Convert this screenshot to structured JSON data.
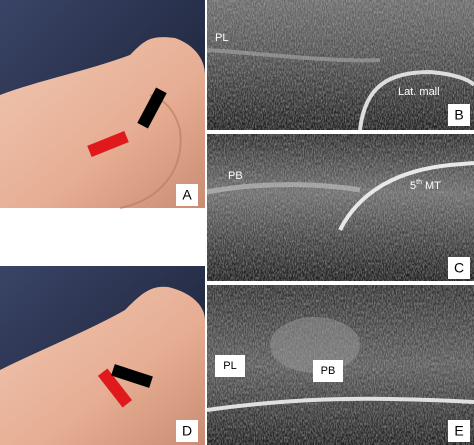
{
  "panels": [
    {
      "letter": "A"
    },
    {
      "letter": "B",
      "labels": [
        "PL",
        "Lat. mall"
      ]
    },
    {
      "letter": "C",
      "labels": [
        "PB"
      ],
      "mt_label": {
        "number": "5",
        "superscript": "th",
        "text": "MT"
      }
    },
    {
      "letter": "D"
    },
    {
      "letter": "E",
      "labels": [
        "PL",
        "PB"
      ]
    }
  ]
}
